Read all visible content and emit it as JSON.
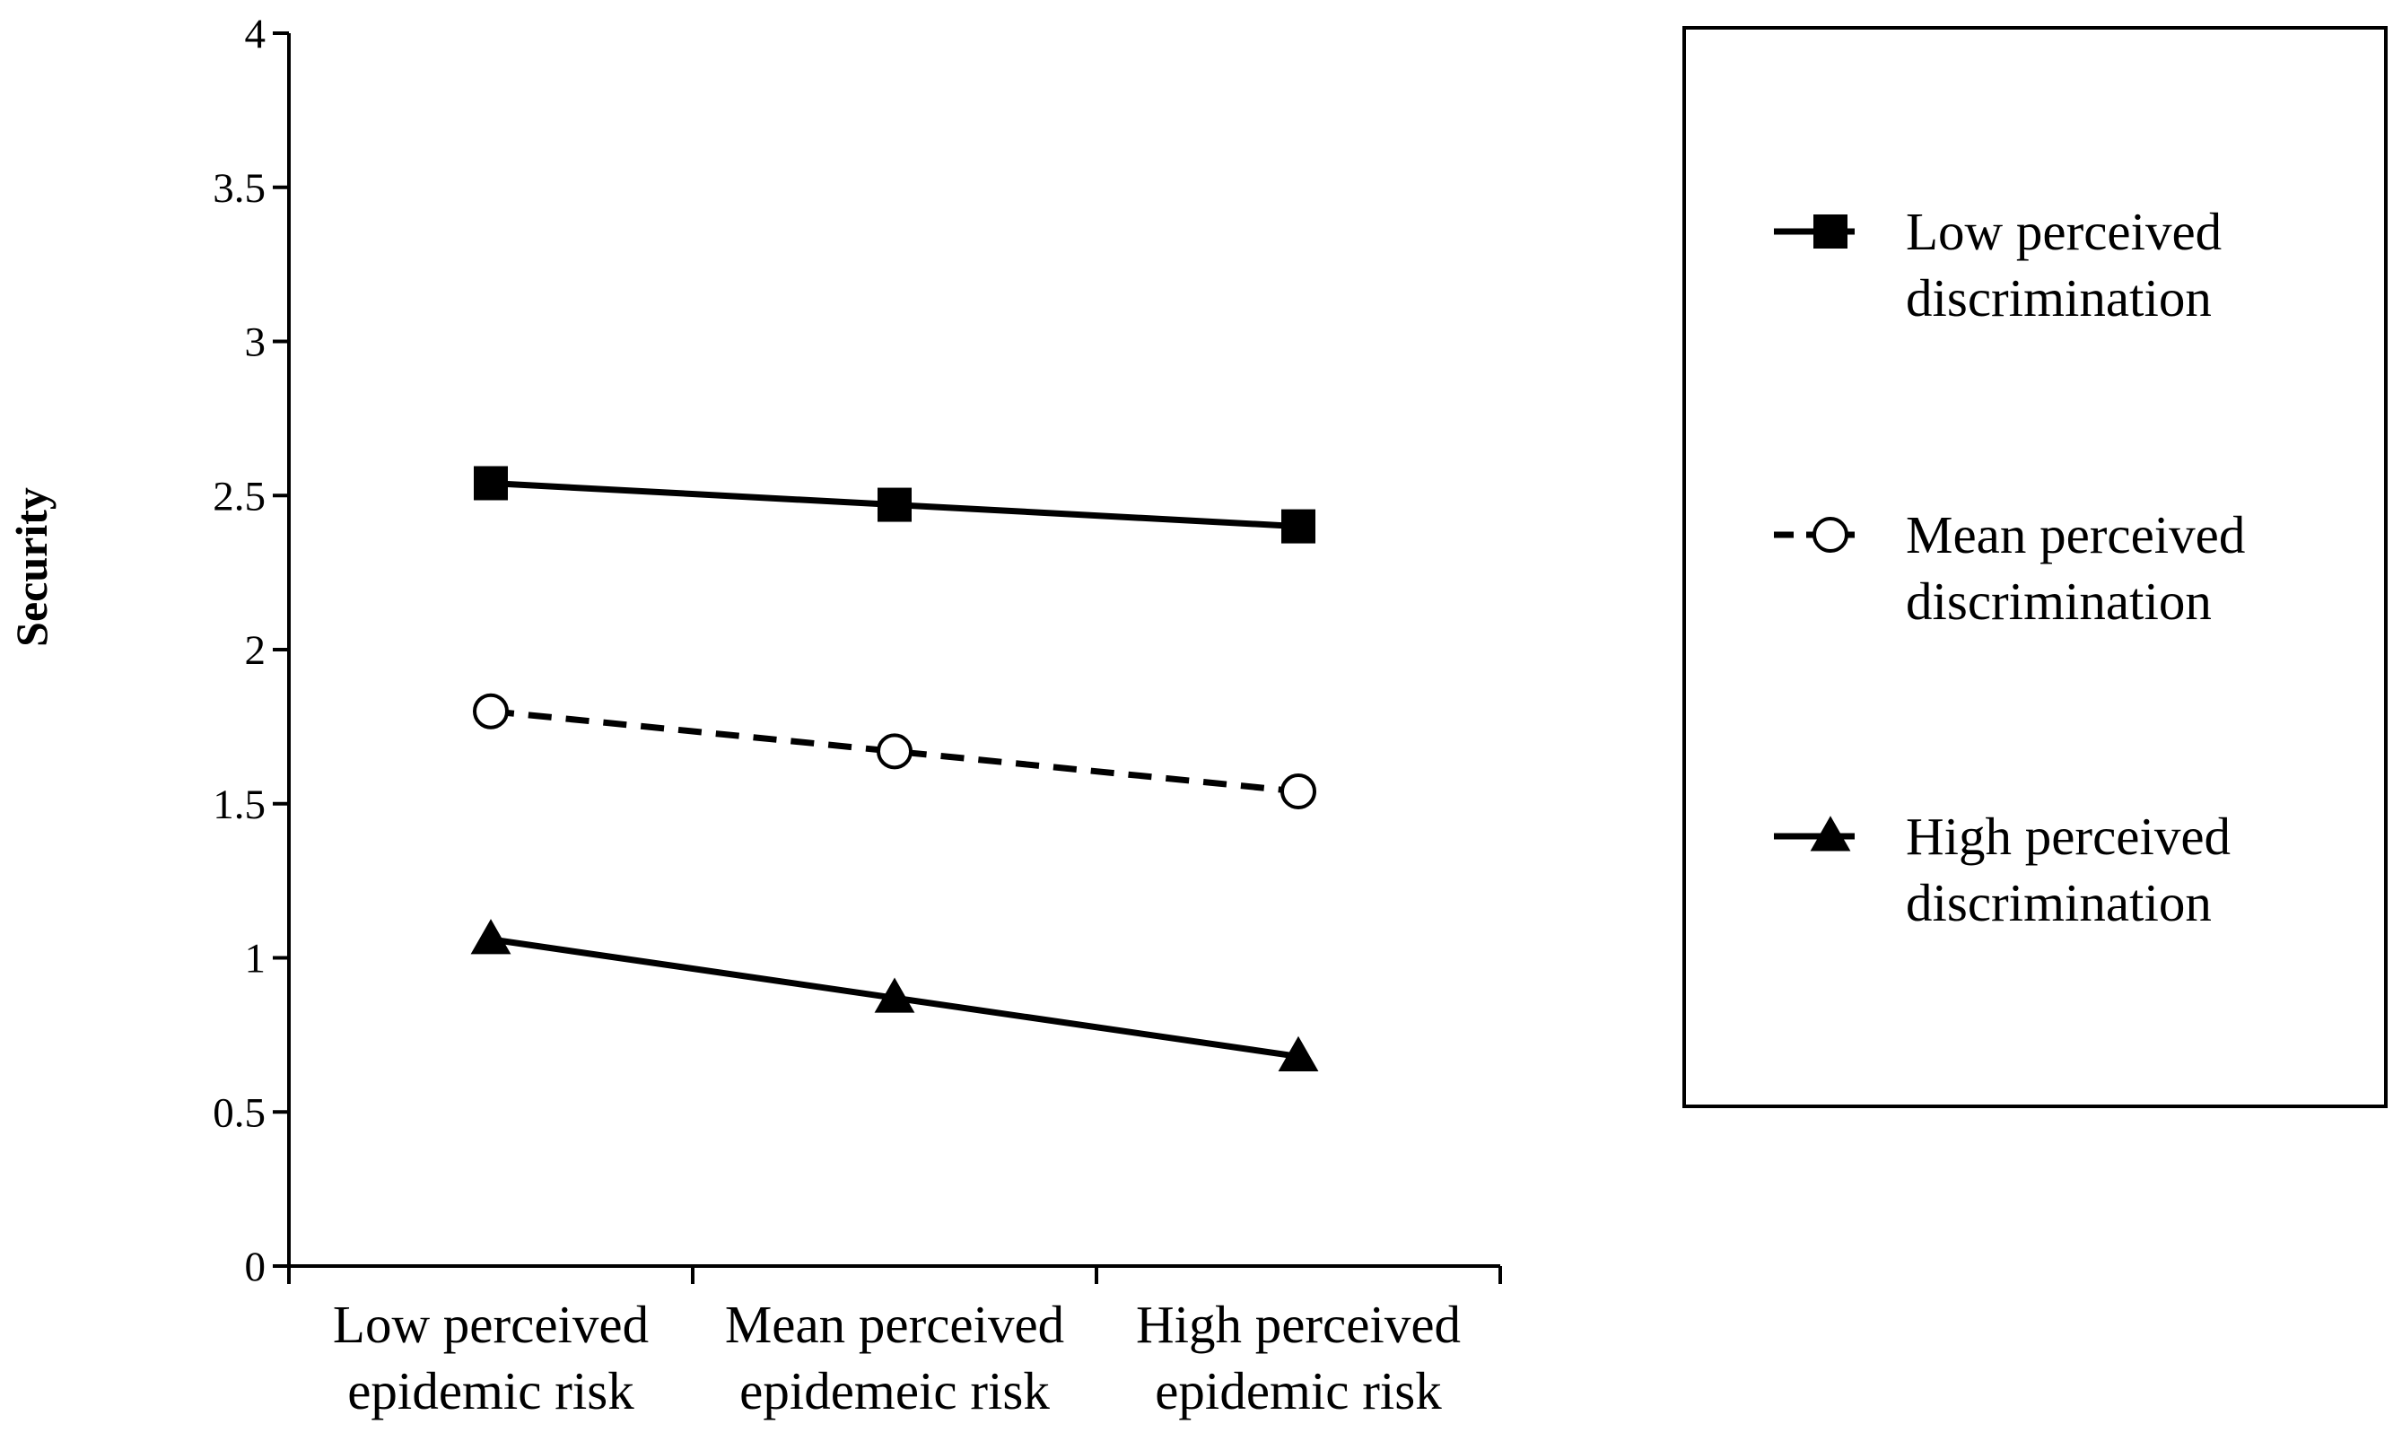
{
  "chart_data": {
    "type": "line",
    "title": "",
    "xlabel": "",
    "ylabel": "Security",
    "ylim": [
      0,
      4
    ],
    "yticks": [
      "0",
      "0.5",
      "1",
      "1.5",
      "2",
      "2.5",
      "3",
      "3.5",
      "4"
    ],
    "categories": [
      [
        "Low perceived",
        "epidemic risk"
      ],
      [
        "Mean perceived",
        "epidemeic risk"
      ],
      [
        "High perceived",
        "epidemic risk"
      ]
    ],
    "series": [
      {
        "name": [
          "Low perceived",
          "discrimination"
        ],
        "values": [
          2.54,
          2.47,
          2.4
        ],
        "marker": "square",
        "dash": "solid",
        "color": "#000000"
      },
      {
        "name": [
          "Mean  perceived",
          "discrimination"
        ],
        "values": [
          1.8,
          1.67,
          1.54
        ],
        "marker": "circle",
        "dash": "dashed",
        "color": "#000000"
      },
      {
        "name": [
          "High perceived",
          "discrimination"
        ],
        "values": [
          1.06,
          0.87,
          0.68
        ],
        "marker": "triangle",
        "dash": "solid",
        "color": "#000000"
      }
    ],
    "legend_position": "right",
    "grid": false
  }
}
